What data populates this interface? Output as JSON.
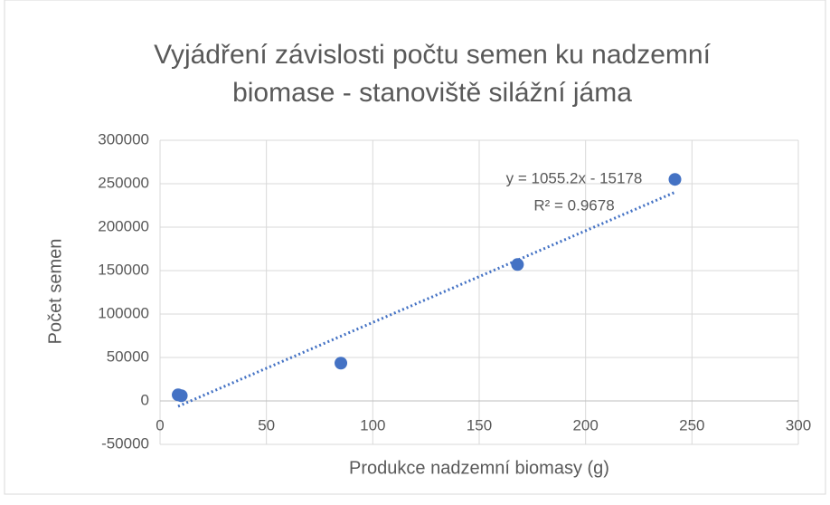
{
  "chart_data": {
    "type": "scatter",
    "title": [
      "Vyjádření závislosti počtu semen ku nadzemní",
      "biomase - stanoviště silážní jáma"
    ],
    "x_label": "Produkce nadzemní biomasy (g)",
    "y_label": "Počet semen",
    "series": [
      {
        "color": "#4472c4",
        "x": [
          8.5,
          10,
          85,
          168,
          242
        ],
        "values": [
          7000,
          6000,
          43500,
          157000,
          255000
        ]
      }
    ],
    "trendline": {
      "slope": 1055.2,
      "intercept": -15178,
      "color": "#4472c4",
      "equation": "y = 1055.2x - 15178",
      "r2_label": "R² = 0.9678"
    },
    "xlim": [
      0,
      300
    ],
    "xticks": [
      0,
      50,
      100,
      150,
      200,
      250,
      300
    ],
    "ylim": [
      -50000,
      300000
    ],
    "yticks": [
      -50000,
      0,
      50000,
      100000,
      150000,
      200000,
      250000,
      300000
    ],
    "grid": true
  }
}
